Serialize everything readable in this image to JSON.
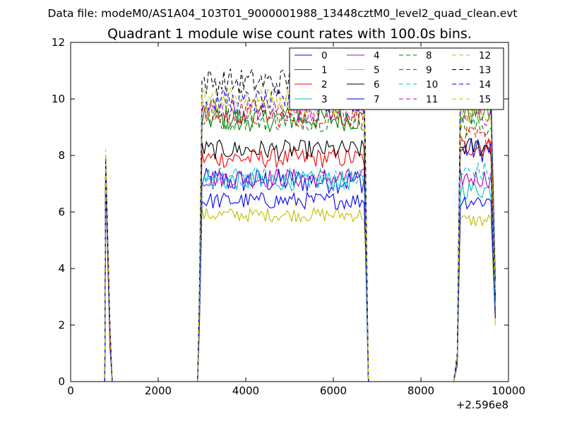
{
  "header": {
    "suptitle": "Data file: modeM0/AS1A04_103T01_9000001988_13448cztM0_level2_quad_clean.evt"
  },
  "chart_data": {
    "type": "line",
    "title": "Quadrant 1 module wise count rates with 100.0s bins.",
    "xlabel": "",
    "ylabel": "",
    "x_offset_label": "+2.596e8",
    "xlim": [
      0,
      10000
    ],
    "ylim": [
      0,
      12
    ],
    "xticks": [
      0,
      2000,
      4000,
      6000,
      8000,
      10000
    ],
    "yticks": [
      0,
      2,
      4,
      6,
      8,
      10,
      12
    ],
    "xtick_labels": [
      "0",
      "2000",
      "4000",
      "6000",
      "8000",
      "10000"
    ],
    "ytick_labels": [
      "0",
      "2",
      "4",
      "6",
      "8",
      "10",
      "12"
    ],
    "grid": false,
    "legend_placement": "top-right",
    "segments": [
      {
        "start": 800,
        "end": 800,
        "ramp_out": [
          900,
          950
        ]
      },
      {
        "start": 2900,
        "end": 6700,
        "ramp_in": [
          2900,
          3000
        ],
        "ramp_out": [
          6700,
          6800
        ]
      },
      {
        "start": 8900,
        "end": 9600,
        "ramp_in": [
          8750,
          8900
        ],
        "ramp_out": [
          9600,
          9700
        ]
      }
    ],
    "baseline_x": [
      950,
      2900,
      6800,
      8750
    ],
    "series": [
      {
        "name": "0",
        "color": "#0000ff",
        "style": "solid",
        "level": 7.1,
        "amp": 0.45,
        "seg3_level": 8.2,
        "spike": 8.0
      },
      {
        "name": "1",
        "color": "#008000",
        "style": "solid",
        "level": 9.3,
        "amp": 0.45,
        "seg3_level": 9.5,
        "spike": 8.0
      },
      {
        "name": "2",
        "color": "#ff0000",
        "style": "solid",
        "level": 7.9,
        "amp": 0.35,
        "seg3_level": 8.3,
        "spike": 7.6
      },
      {
        "name": "3",
        "color": "#00bfbf",
        "style": "solid",
        "level": 7.1,
        "amp": 0.35,
        "seg3_level": 6.8,
        "spike": 7.4
      },
      {
        "name": "4",
        "color": "#bf00bf",
        "style": "solid",
        "level": 7.2,
        "amp": 0.35,
        "seg3_level": 7.2,
        "spike": 7.5
      },
      {
        "name": "5",
        "color": "#bfbf00",
        "style": "solid",
        "level": 5.9,
        "amp": 0.25,
        "seg3_level": 5.7,
        "spike": 7.0
      },
      {
        "name": "6",
        "color": "#000000",
        "style": "solid",
        "level": 8.2,
        "amp": 0.35,
        "seg3_level": 8.3,
        "spike": 7.5
      },
      {
        "name": "7",
        "color": "#0000ff",
        "style": "solid",
        "level": 6.4,
        "amp": 0.3,
        "seg3_level": 6.4,
        "spike": 7.0
      },
      {
        "name": "8",
        "color": "#008000",
        "style": "dashed",
        "level": 9.3,
        "amp": 0.45,
        "seg3_level": 9.0,
        "spike": 8.0
      },
      {
        "name": "9",
        "color": "#ff0000",
        "style": "dashed",
        "level": 9.4,
        "amp": 0.4,
        "seg3_level": 8.6,
        "spike": 7.8
      },
      {
        "name": "10",
        "color": "#00bfbf",
        "style": "dashed",
        "level": 7.2,
        "amp": 0.4,
        "seg3_level": 7.4,
        "spike": 7.5
      },
      {
        "name": "11",
        "color": "#bf00bf",
        "style": "dashed",
        "level": 9.6,
        "amp": 0.45,
        "seg3_level": 9.4,
        "spike": 7.9
      },
      {
        "name": "12",
        "color": "#bfbf00",
        "style": "dashed",
        "level": 10.0,
        "amp": 0.4,
        "seg3_level": 9.6,
        "spike": 8.2
      },
      {
        "name": "13",
        "color": "#000000",
        "style": "dashed",
        "level": 10.6,
        "amp": 0.5,
        "seg3_level": 10.2,
        "spike": 7.8
      },
      {
        "name": "14",
        "color": "#0000ff",
        "style": "dashed",
        "level": 9.9,
        "amp": 0.45,
        "seg3_level": 10.0,
        "spike": 7.6
      },
      {
        "name": "15",
        "color": "#bfbf00",
        "style": "dashed",
        "level": 9.8,
        "amp": 0.4,
        "seg3_level": 9.3,
        "spike": 7.7
      }
    ]
  }
}
